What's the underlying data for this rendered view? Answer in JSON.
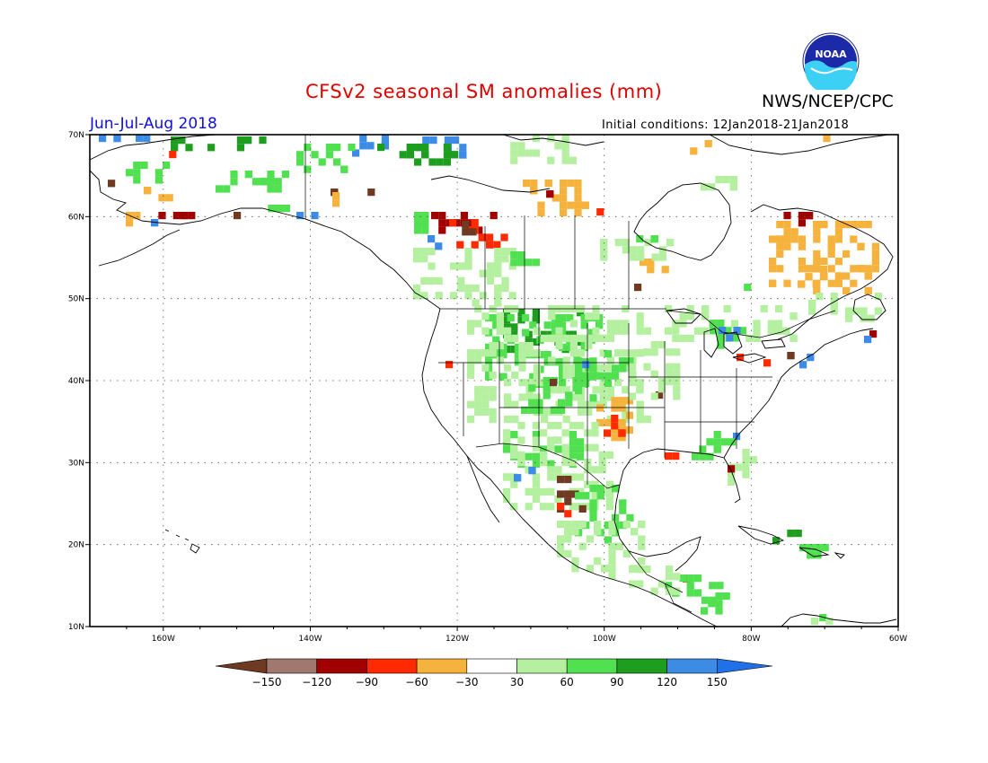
{
  "title": "CFSv2 seasonal SM anomalies (mm)",
  "agency": "NWS/NCEP/CPC",
  "logo_text": "NOAA",
  "season": "Jun-Jul-Aug 2018",
  "initial_conditions": "Initial conditions: 12Jan2018-21Jan2018",
  "lat_ticks": [
    {
      "value": 70,
      "label": "70N"
    },
    {
      "value": 60,
      "label": "60N"
    },
    {
      "value": 50,
      "label": "50N"
    },
    {
      "value": 40,
      "label": "40N"
    },
    {
      "value": 30,
      "label": "30N"
    },
    {
      "value": 20,
      "label": "20N"
    },
    {
      "value": 10,
      "label": "10N"
    }
  ],
  "lon_ticks": [
    {
      "value": -160,
      "label": "160W"
    },
    {
      "value": -140,
      "label": "140W"
    },
    {
      "value": -120,
      "label": "120W"
    },
    {
      "value": -100,
      "label": "100W"
    },
    {
      "value": -80,
      "label": "80W"
    },
    {
      "value": -60,
      "label": "60W"
    }
  ],
  "colorbar": {
    "labels": [
      "−150",
      "−120",
      "−90",
      "−60",
      "−30",
      "30",
      "60",
      "90",
      "120",
      "150"
    ],
    "colors": [
      "#6e3a22",
      "#a0786e",
      "#a00000",
      "#ff2a00",
      "#f5b23c",
      "#ffffff",
      "#b4f0a0",
      "#50e050",
      "#1e9e1e",
      "#3c8ce6",
      "#2070e8"
    ]
  },
  "map_colors": {
    "brown": "#6e3a22",
    "darkred": "#a00000",
    "red": "#ff2a00",
    "orange": "#f5b23c",
    "lightgreen": "#b4f0a0",
    "green": "#50e050",
    "darkgreen": "#1e9e1e",
    "blue": "#3c8ce6"
  }
}
